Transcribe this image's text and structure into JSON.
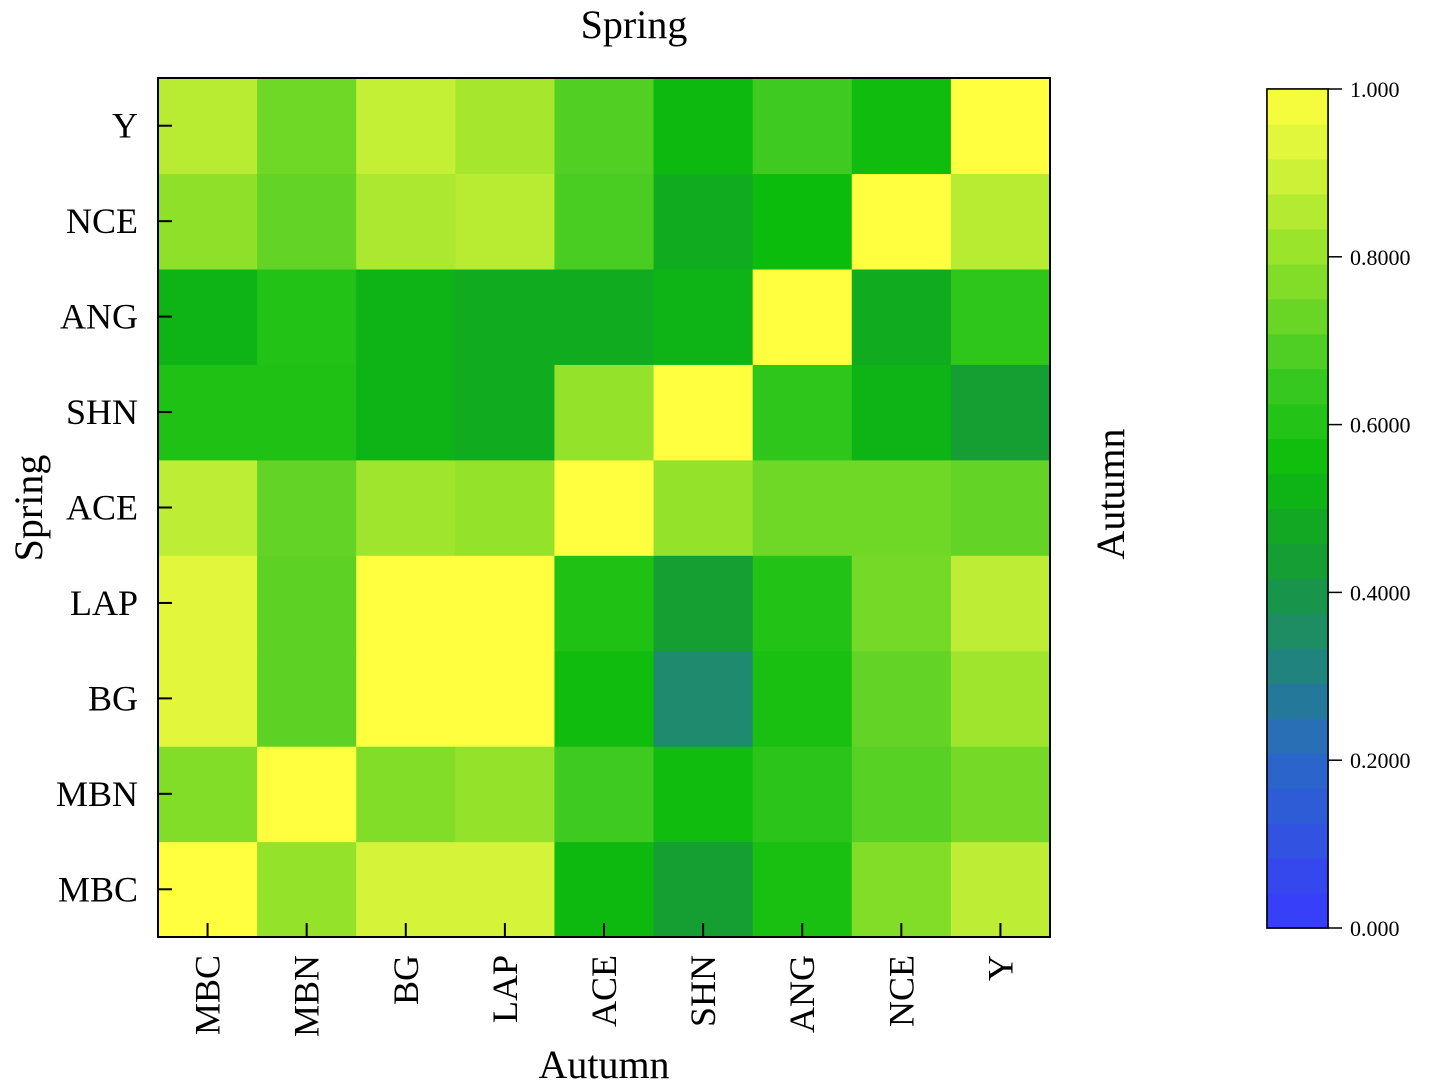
{
  "chart_data": {
    "type": "heatmap",
    "title": "Spring",
    "xlabel": "Autumn",
    "ylabel": "Spring",
    "right_label": "Autumn",
    "x_categories": [
      "MBC",
      "MBN",
      "BG",
      "LAP",
      "ACE",
      "SHN",
      "ANG",
      "NCE",
      "Y"
    ],
    "y_categories": [
      "MBC",
      "MBN",
      "BG",
      "LAP",
      "ACE",
      "SHN",
      "ANG",
      "NCE",
      "Y"
    ],
    "values": [
      [
        1.0,
        0.8,
        0.91,
        0.91,
        0.54,
        0.44,
        0.58,
        0.77,
        0.87
      ],
      [
        0.77,
        1.0,
        0.77,
        0.8,
        0.66,
        0.56,
        0.62,
        0.7,
        0.75
      ],
      [
        0.94,
        0.71,
        1.0,
        1.0,
        0.56,
        0.34,
        0.58,
        0.72,
        0.82
      ],
      [
        0.94,
        0.71,
        1.0,
        1.0,
        0.59,
        0.44,
        0.6,
        0.75,
        0.87
      ],
      [
        0.87,
        0.72,
        0.82,
        0.8,
        1.0,
        0.8,
        0.74,
        0.74,
        0.72
      ],
      [
        0.59,
        0.59,
        0.52,
        0.49,
        0.8,
        1.0,
        0.63,
        0.52,
        0.44
      ],
      [
        0.52,
        0.6,
        0.52,
        0.49,
        0.49,
        0.52,
        1.0,
        0.49,
        0.63
      ],
      [
        0.79,
        0.72,
        0.84,
        0.86,
        0.68,
        0.49,
        0.55,
        1.0,
        0.86
      ],
      [
        0.86,
        0.74,
        0.88,
        0.83,
        0.69,
        0.54,
        0.66,
        0.56,
        1.0
      ]
    ],
    "colorbar": {
      "min": 0,
      "max": 1,
      "ticks": [
        {
          "value": 1.0,
          "label": "1.000"
        },
        {
          "value": 0.8,
          "label": "0.8000"
        },
        {
          "value": 0.6,
          "label": "0.6000"
        },
        {
          "value": 0.4,
          "label": "0.4000"
        },
        {
          "value": 0.2,
          "label": "0.2000"
        },
        {
          "value": 0.0,
          "label": "0.000"
        }
      ],
      "colors": {
        "low": "#3b3bff",
        "mid_low": "#1e9040",
        "mid": "#10bf10",
        "mid_high": "#8ee020",
        "high": "#ffff40"
      }
    },
    "grid": false
  }
}
